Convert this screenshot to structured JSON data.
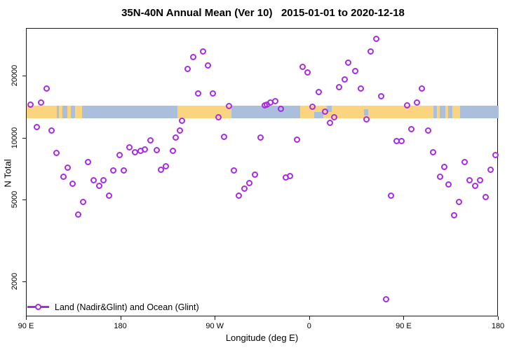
{
  "title": "35N-40N Annual Mean (Ver 10)   2015-01-01 to 2020-12-18",
  "legend": {
    "label": "Land (Nadir&Glint) and Ocean (Glint)"
  },
  "colors": {
    "point": "#A82AE8",
    "land": "#FAD47E",
    "ocean": "#A9BFDB",
    "axis": "#1a1a1a"
  },
  "chart_data": {
    "type": "scatter",
    "title": "35N-40N Annual Mean (Ver 10)   2015-01-01 to 2020-12-18",
    "xlabel": "Longitude (deg E)",
    "ylabel": "N Total",
    "y_scale": "log",
    "ylim": [
      1352,
      34200
    ],
    "x_axis": {
      "domain_deg": [
        0,
        450
      ],
      "note": "x is degrees eastward along axis; 0 = 90 E at left edge, axis wraps 180, 90 W, 0, 90 E to 180",
      "ticks": [
        {
          "pos": 0,
          "label": "90 E"
        },
        {
          "pos": 90,
          "label": "180"
        },
        {
          "pos": 180,
          "label": "90 W"
        },
        {
          "pos": 270,
          "label": "0"
        },
        {
          "pos": 360,
          "label": "90 E"
        },
        {
          "pos": 450,
          "label": "180"
        }
      ]
    },
    "y_ticks": [
      {
        "value": 20000,
        "label": "20000"
      },
      {
        "value": 10000,
        "label": "10000"
      },
      {
        "value": 5000,
        "label": "5000"
      },
      {
        "value": 2000,
        "label": "2000"
      }
    ],
    "map_strip": {
      "n_range": [
        12500,
        14400
      ],
      "land_segments_deg": [
        [
          0,
          29
        ],
        [
          31,
          34
        ],
        [
          39,
          42
        ],
        [
          46,
          53
        ],
        [
          144,
          195
        ],
        [
          261,
          388
        ],
        [
          391,
          394
        ],
        [
          399,
          402
        ],
        [
          406,
          413
        ]
      ],
      "ocean_patches_deg": [
        {
          "range": [
            274,
            283
          ],
          "part": "bottom"
        },
        {
          "range": [
            286,
            291
          ],
          "part": "top"
        },
        {
          "range": [
            321.5,
            325.5
          ],
          "part": "middle"
        }
      ]
    },
    "series": [
      {
        "name": "Land (Nadir&Glint) and Ocean (Glint)",
        "marker": "open-circle",
        "color": "#A82AE8",
        "points": [
          [
            3.5,
            14600
          ],
          [
            13.8,
            14900
          ],
          [
            19.2,
            17500
          ],
          [
            9.4,
            11400
          ],
          [
            23.9,
            10900
          ],
          [
            28.7,
            8500
          ],
          [
            38.8,
            7200
          ],
          [
            35.0,
            6500
          ],
          [
            43.9,
            6000
          ],
          [
            58.8,
            7700
          ],
          [
            63.7,
            6280
          ],
          [
            69.5,
            5880
          ],
          [
            72.9,
            6240
          ],
          [
            53.7,
            4900
          ],
          [
            49.3,
            4250
          ],
          [
            78.4,
            5260
          ],
          [
            82.9,
            7000
          ],
          [
            88.5,
            8300
          ],
          [
            92.3,
            7000
          ],
          [
            97.8,
            9050
          ],
          [
            103.4,
            8600
          ],
          [
            108.5,
            8700
          ],
          [
            113.0,
            8850
          ],
          [
            117.9,
            9800
          ],
          [
            123.7,
            8800
          ],
          [
            127.9,
            7050
          ],
          [
            132.9,
            7350
          ],
          [
            139.1,
            8700
          ],
          [
            142.4,
            10100
          ],
          [
            146.4,
            10900
          ],
          [
            148.4,
            12150
          ],
          [
            153.6,
            21800
          ],
          [
            158.5,
            24900
          ],
          [
            168.0,
            26600
          ],
          [
            173.0,
            22700
          ],
          [
            163.6,
            16500
          ],
          [
            177.6,
            16500
          ],
          [
            192.6,
            14400
          ],
          [
            183.2,
            12700
          ],
          [
            188.1,
            10200
          ],
          [
            197.7,
            7000
          ],
          [
            202.1,
            5280
          ],
          [
            207.5,
            5700
          ],
          [
            212.6,
            6080
          ],
          [
            217.5,
            6680
          ],
          [
            223.3,
            10100
          ],
          [
            226.7,
            14500
          ],
          [
            228.7,
            14600
          ],
          [
            232.2,
            14900
          ],
          [
            237.2,
            15200
          ],
          [
            242.7,
            13900
          ],
          [
            247.2,
            6480
          ],
          [
            251.3,
            6570
          ],
          [
            257.9,
            9900
          ],
          [
            263.4,
            22300
          ],
          [
            267.9,
            21000
          ],
          [
            272.8,
            14300
          ],
          [
            278.8,
            16800
          ],
          [
            284.4,
            13550
          ],
          [
            288.9,
            11900
          ],
          [
            292.9,
            12700
          ],
          [
            297.8,
            17700
          ],
          [
            302.9,
            19300
          ],
          [
            306.7,
            23300
          ],
          [
            313.0,
            21200
          ],
          [
            318.5,
            17500
          ],
          [
            324.1,
            12400
          ],
          [
            327.9,
            26500
          ],
          [
            333.0,
            30500
          ],
          [
            338.1,
            16000
          ],
          [
            343.0,
            1655
          ],
          [
            347.5,
            5260
          ],
          [
            352.4,
            9700
          ],
          [
            357.1,
            9700
          ],
          [
            362.6,
            14500
          ],
          [
            366.9,
            11100
          ],
          [
            372.4,
            14900
          ],
          [
            377.1,
            17500
          ],
          [
            382.7,
            10900
          ],
          [
            387.6,
            8540
          ],
          [
            394.3,
            6530
          ],
          [
            398.1,
            7260
          ],
          [
            402.1,
            5960
          ],
          [
            407.7,
            4240
          ],
          [
            412.1,
            4930
          ],
          [
            417.7,
            7700
          ],
          [
            422.2,
            6280
          ],
          [
            427.8,
            5880
          ],
          [
            432.6,
            6240
          ],
          [
            437.6,
            5190
          ],
          [
            442.2,
            7070
          ],
          [
            447.1,
            8320
          ]
        ]
      }
    ]
  }
}
